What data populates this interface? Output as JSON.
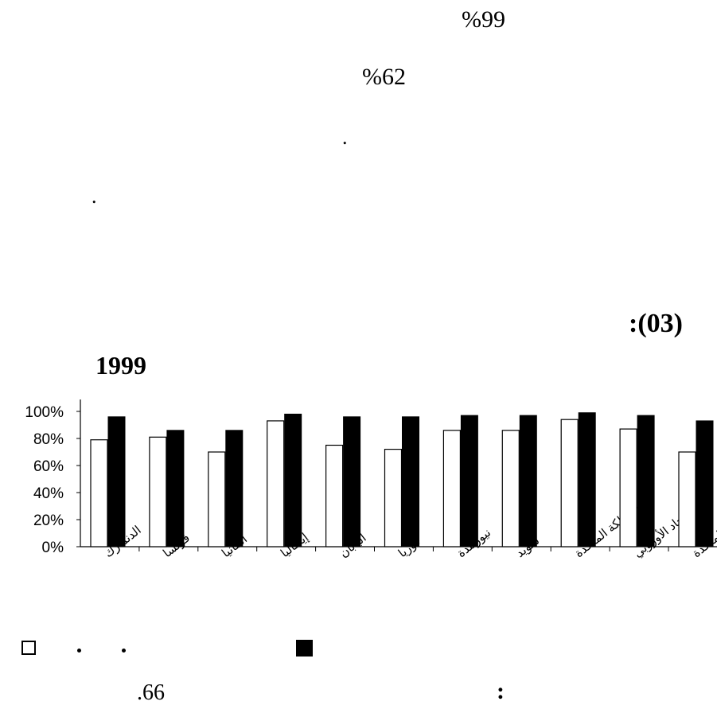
{
  "text": {
    "pct_top": "%99",
    "pct_mid": "%62",
    "dot_a": ".",
    "dot_b": ".",
    "figure_number": ":(03)",
    "year": "1999",
    "page_number": ".66",
    "colon": ":"
  },
  "colors": {
    "filled": "#000000",
    "outline": "#000000",
    "empty": "#ffffff"
  },
  "chart_data": {
    "type": "bar",
    "categories": [
      "الدنمارك",
      "فرنسا",
      "ألمانيا",
      "إيطاليا",
      "اليابان",
      "كوريا",
      "نيوزلندة",
      "سويد",
      "المملكة المتحدة",
      "الاتحاد الأوروبي",
      "الولايات المتحدة"
    ],
    "series": [
      {
        "style": "white",
        "values": [
          79,
          81,
          70,
          93,
          75,
          72,
          86,
          86,
          94,
          87,
          70
        ]
      },
      {
        "style": "black",
        "values": [
          96,
          86,
          86,
          98,
          96,
          96,
          97,
          97,
          99,
          97,
          93
        ]
      }
    ],
    "yticks": [
      "0%",
      "20%",
      "40%",
      "60%",
      "80%",
      "100%"
    ],
    "ylim": [
      0,
      100
    ],
    "legend": "bottom"
  }
}
